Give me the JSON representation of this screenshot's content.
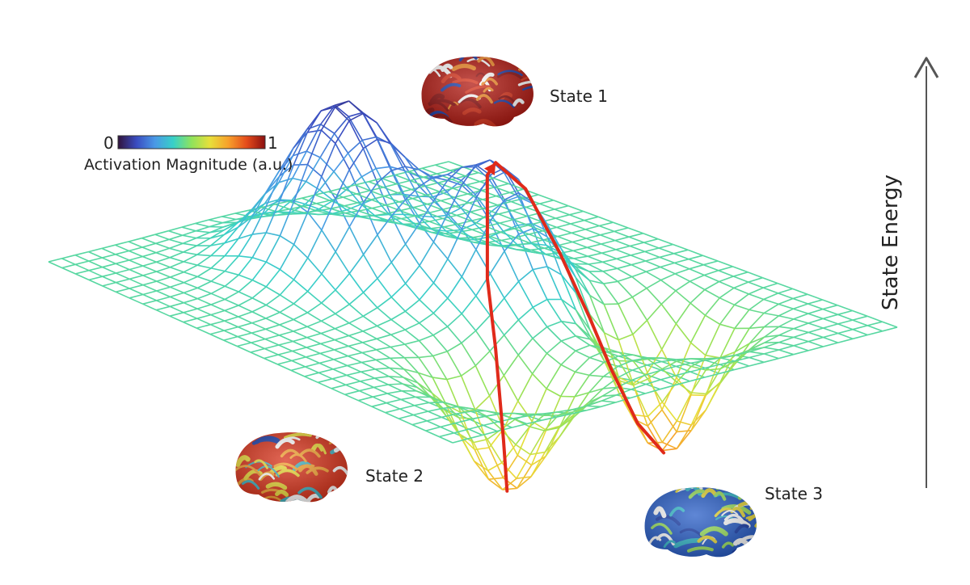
{
  "figure": {
    "colorbar": {
      "min_label": "0",
      "max_label": "1",
      "title": "Activation Magnitude (a.u.)",
      "colormap": [
        "#30123b",
        "#3a4cc0",
        "#4a98e6",
        "#38d0c8",
        "#8fe35c",
        "#e8df3a",
        "#f7a02b",
        "#e44b1b",
        "#8b1010"
      ]
    },
    "axis": {
      "label": "State Energy",
      "direction": "up",
      "color": "#555555"
    },
    "states": [
      {
        "name": "State 1",
        "kind": "peak",
        "brain_activation": "high"
      },
      {
        "name": "State 2",
        "kind": "valley",
        "brain_activation": "medium"
      },
      {
        "name": "State 3",
        "kind": "valley",
        "brain_activation": "low"
      }
    ],
    "surface": {
      "type": "wireframe energy landscape",
      "features": [
        "two peaks",
        "two basins"
      ],
      "colored_by": "activation magnitude"
    },
    "trajectory": {
      "color": "#e02a1a",
      "description": "path from State 2 basin over the ridge down into State 3 basin"
    }
  }
}
